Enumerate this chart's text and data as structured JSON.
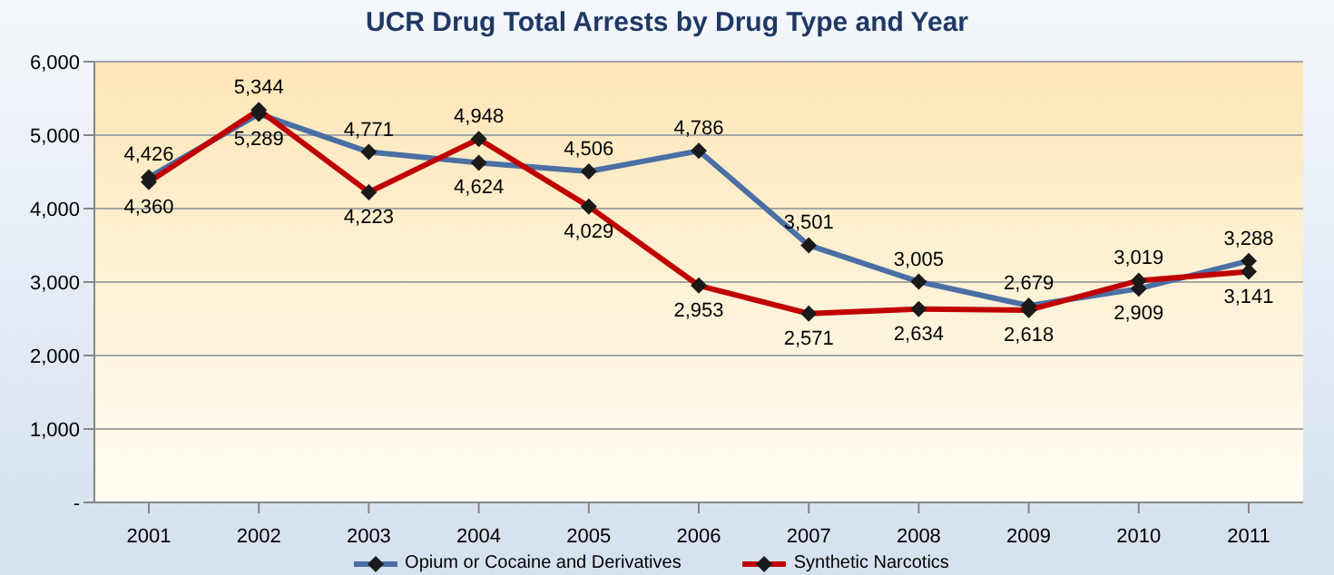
{
  "chart_data": {
    "type": "line",
    "title": "UCR Drug Total Arrests by Drug Type and Year",
    "categories": [
      "2001",
      "2002",
      "2003",
      "2004",
      "2005",
      "2006",
      "2007",
      "2008",
      "2009",
      "2010",
      "2011"
    ],
    "series": [
      {
        "name": "Opium or Cocaine and Derivatives",
        "color": "#4a6fa5",
        "values": [
          4426,
          5289,
          4771,
          4624,
          4506,
          4786,
          3501,
          3005,
          2679,
          2909,
          3288
        ],
        "value_labels": [
          "4,426",
          "5,289",
          "4,771",
          "4,624",
          "4,506",
          "4,786",
          "3,501",
          "3,005",
          "2,679",
          "2,909",
          "3,288"
        ]
      },
      {
        "name": "Synthetic Narcotics",
        "color": "#c00000",
        "values": [
          4360,
          5344,
          4223,
          4948,
          4029,
          2953,
          2571,
          2634,
          2618,
          3019,
          3141
        ],
        "value_labels": [
          "4,360",
          "5,344",
          "4,223",
          "4,948",
          "4,029",
          "2,953",
          "2,571",
          "2,634",
          "2,618",
          "3,019",
          "3,141"
        ]
      }
    ],
    "ylim": [
      0,
      6000
    ],
    "yticks": [
      {
        "value": 0,
        "label": "-"
      },
      {
        "value": 1000,
        "label": "1,000"
      },
      {
        "value": 2000,
        "label": "2,000"
      },
      {
        "value": 3000,
        "label": "3,000"
      },
      {
        "value": 4000,
        "label": "4,000"
      },
      {
        "value": 5000,
        "label": "5,000"
      },
      {
        "value": 6000,
        "label": "6,000"
      }
    ],
    "grid": "y",
    "legend": "bottom",
    "marker": "diamond",
    "line_style": "solid"
  }
}
